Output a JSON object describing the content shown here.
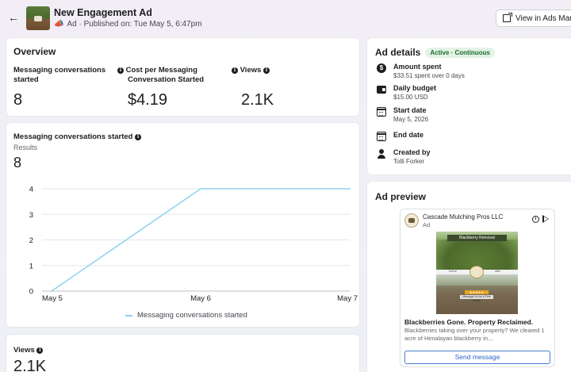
{
  "header": {
    "title": "New Engagement Ad",
    "subtitle": "Ad · Published on: Tue May 5, 6:47pm",
    "view_ads_label": "View in Ads Manag"
  },
  "overview": {
    "title": "Overview",
    "metrics": [
      {
        "label_line1": "Messaging conversations",
        "label_line2": "started",
        "value": "8"
      },
      {
        "label_line1": "Cost per Messaging",
        "label_line2": "Conversation Started",
        "value": "$4.19"
      },
      {
        "label_line1": "Views",
        "label_line2": "",
        "value": "2.1K"
      }
    ]
  },
  "chart_card": {
    "title": "Messaging conversations started",
    "results_label": "Results",
    "results_value": "8"
  },
  "chart_data": {
    "type": "line",
    "categories": [
      "May 5",
      "May 6",
      "May 7"
    ],
    "series": [
      {
        "name": "Messaging conversations started",
        "x": [
          "May 5",
          "May 6",
          "May 7"
        ],
        "values": [
          0,
          4,
          4
        ]
      }
    ],
    "yticks": [
      0,
      1,
      2,
      3,
      4
    ],
    "ylim": [
      0,
      4
    ],
    "grid": true,
    "legend": "bottom",
    "color": "#8fd0ee"
  },
  "views_card": {
    "title": "Views",
    "value": "2.1K"
  },
  "details": {
    "title": "Ad details",
    "status": "Active · Continuous",
    "rows": [
      {
        "icon": "dollar-icon",
        "label": "Amount spent",
        "value": "$33.51 spent over 0 days"
      },
      {
        "icon": "wallet-icon",
        "label": "Daily budget",
        "value": "$15.00 USD"
      },
      {
        "icon": "calendar-icon",
        "label": "Start date",
        "value": "May 5, 2026"
      },
      {
        "icon": "calendar-icon",
        "label": "End date",
        "value": ""
      },
      {
        "icon": "person-icon",
        "label": "Created by",
        "value": "Tolli Forker"
      }
    ]
  },
  "preview": {
    "title": "Ad preview",
    "page_name": "Cascade Mulching Pros LLC",
    "ad_label": "Ad",
    "creative_banner": "Blackberry Removal",
    "creative_before": "before",
    "creative_after": "after",
    "creative_stars": "★★★★★",
    "creative_cta": "Message Us for a Free Quote",
    "headline": "Blackberries Gone. Property Reclaimed.",
    "body": "Blackberries taking over your property? We cleared 1 acre of Himalayan blackberry in...",
    "cta_label": "Send message"
  }
}
